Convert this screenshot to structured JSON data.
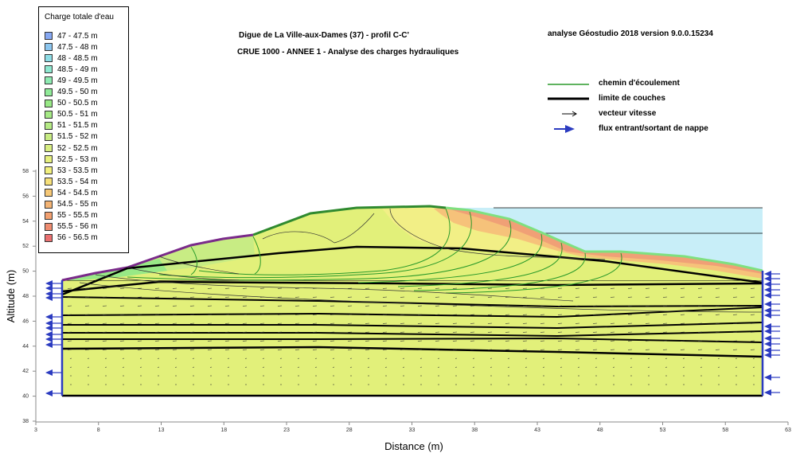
{
  "legend": {
    "title": "Charge totale d'eau",
    "items": [
      {
        "label": "47 - 47.5 m",
        "color": "#86a8f2"
      },
      {
        "label": "47.5 - 48 m",
        "color": "#8cc6ef"
      },
      {
        "label": "48 - 48.5 m",
        "color": "#8edde6"
      },
      {
        "label": "48.5 - 49 m",
        "color": "#8ee8d0"
      },
      {
        "label": "49 - 49.5 m",
        "color": "#8eebb2"
      },
      {
        "label": "49.5 - 50 m",
        "color": "#90ea98"
      },
      {
        "label": "50 - 50.5 m",
        "color": "#98e986"
      },
      {
        "label": "50.5 - 51 m",
        "color": "#a6ea86"
      },
      {
        "label": "51 - 51.5 m",
        "color": "#b6eb86"
      },
      {
        "label": "51.5 - 52 m",
        "color": "#c8ec84"
      },
      {
        "label": "52 - 52.5 m",
        "color": "#d8ee82"
      },
      {
        "label": "52.5 - 53 m",
        "color": "#e6f07e"
      },
      {
        "label": "53 - 53.5 m",
        "color": "#f2f07e"
      },
      {
        "label": "53.5 - 54 m",
        "color": "#f6e07a"
      },
      {
        "label": "54 - 54.5 m",
        "color": "#f6c876"
      },
      {
        "label": "54.5 - 55 m",
        "color": "#f4b474"
      },
      {
        "label": "55 - 55.5 m",
        "color": "#f2a070"
      },
      {
        "label": "55.5 - 56 m",
        "color": "#ee8c70"
      },
      {
        "label": "56 - 56.5 m",
        "color": "#ea7070"
      }
    ]
  },
  "titles": {
    "line1": "Digue de La Ville-aux-Dames (37) - profil C-C'",
    "line2": "CRUE 1000 - ANNEE 1 - Analyse des charges hydrauliques",
    "software": "analyse Géostudio 2018 version 9.0.0.15234"
  },
  "key": {
    "flow_path": "chemin d'écoulement",
    "layer_limit": "limite de couches",
    "velocity": "vecteur vitesse",
    "flux": "flux entrant/sortant de nappe"
  },
  "axes": {
    "xlabel": "Distance (m)",
    "ylabel": "Altitude (m)",
    "x_ticks": [
      "3",
      "8",
      "13",
      "18",
      "23",
      "28",
      "33",
      "38",
      "43",
      "48",
      "53",
      "58",
      "63"
    ],
    "y_ticks": [
      "38",
      "40",
      "42",
      "44",
      "46",
      "48",
      "50",
      "52",
      "54",
      "56",
      "58"
    ]
  },
  "colors": {
    "soil": "#e2f07a",
    "water": "#c8eef8",
    "flow_path": "#2a9a2a",
    "flux_arrow": "#2b3bc0",
    "crest_green": "#2f8a2f",
    "seepage_purple": "#7a2a8a"
  }
}
